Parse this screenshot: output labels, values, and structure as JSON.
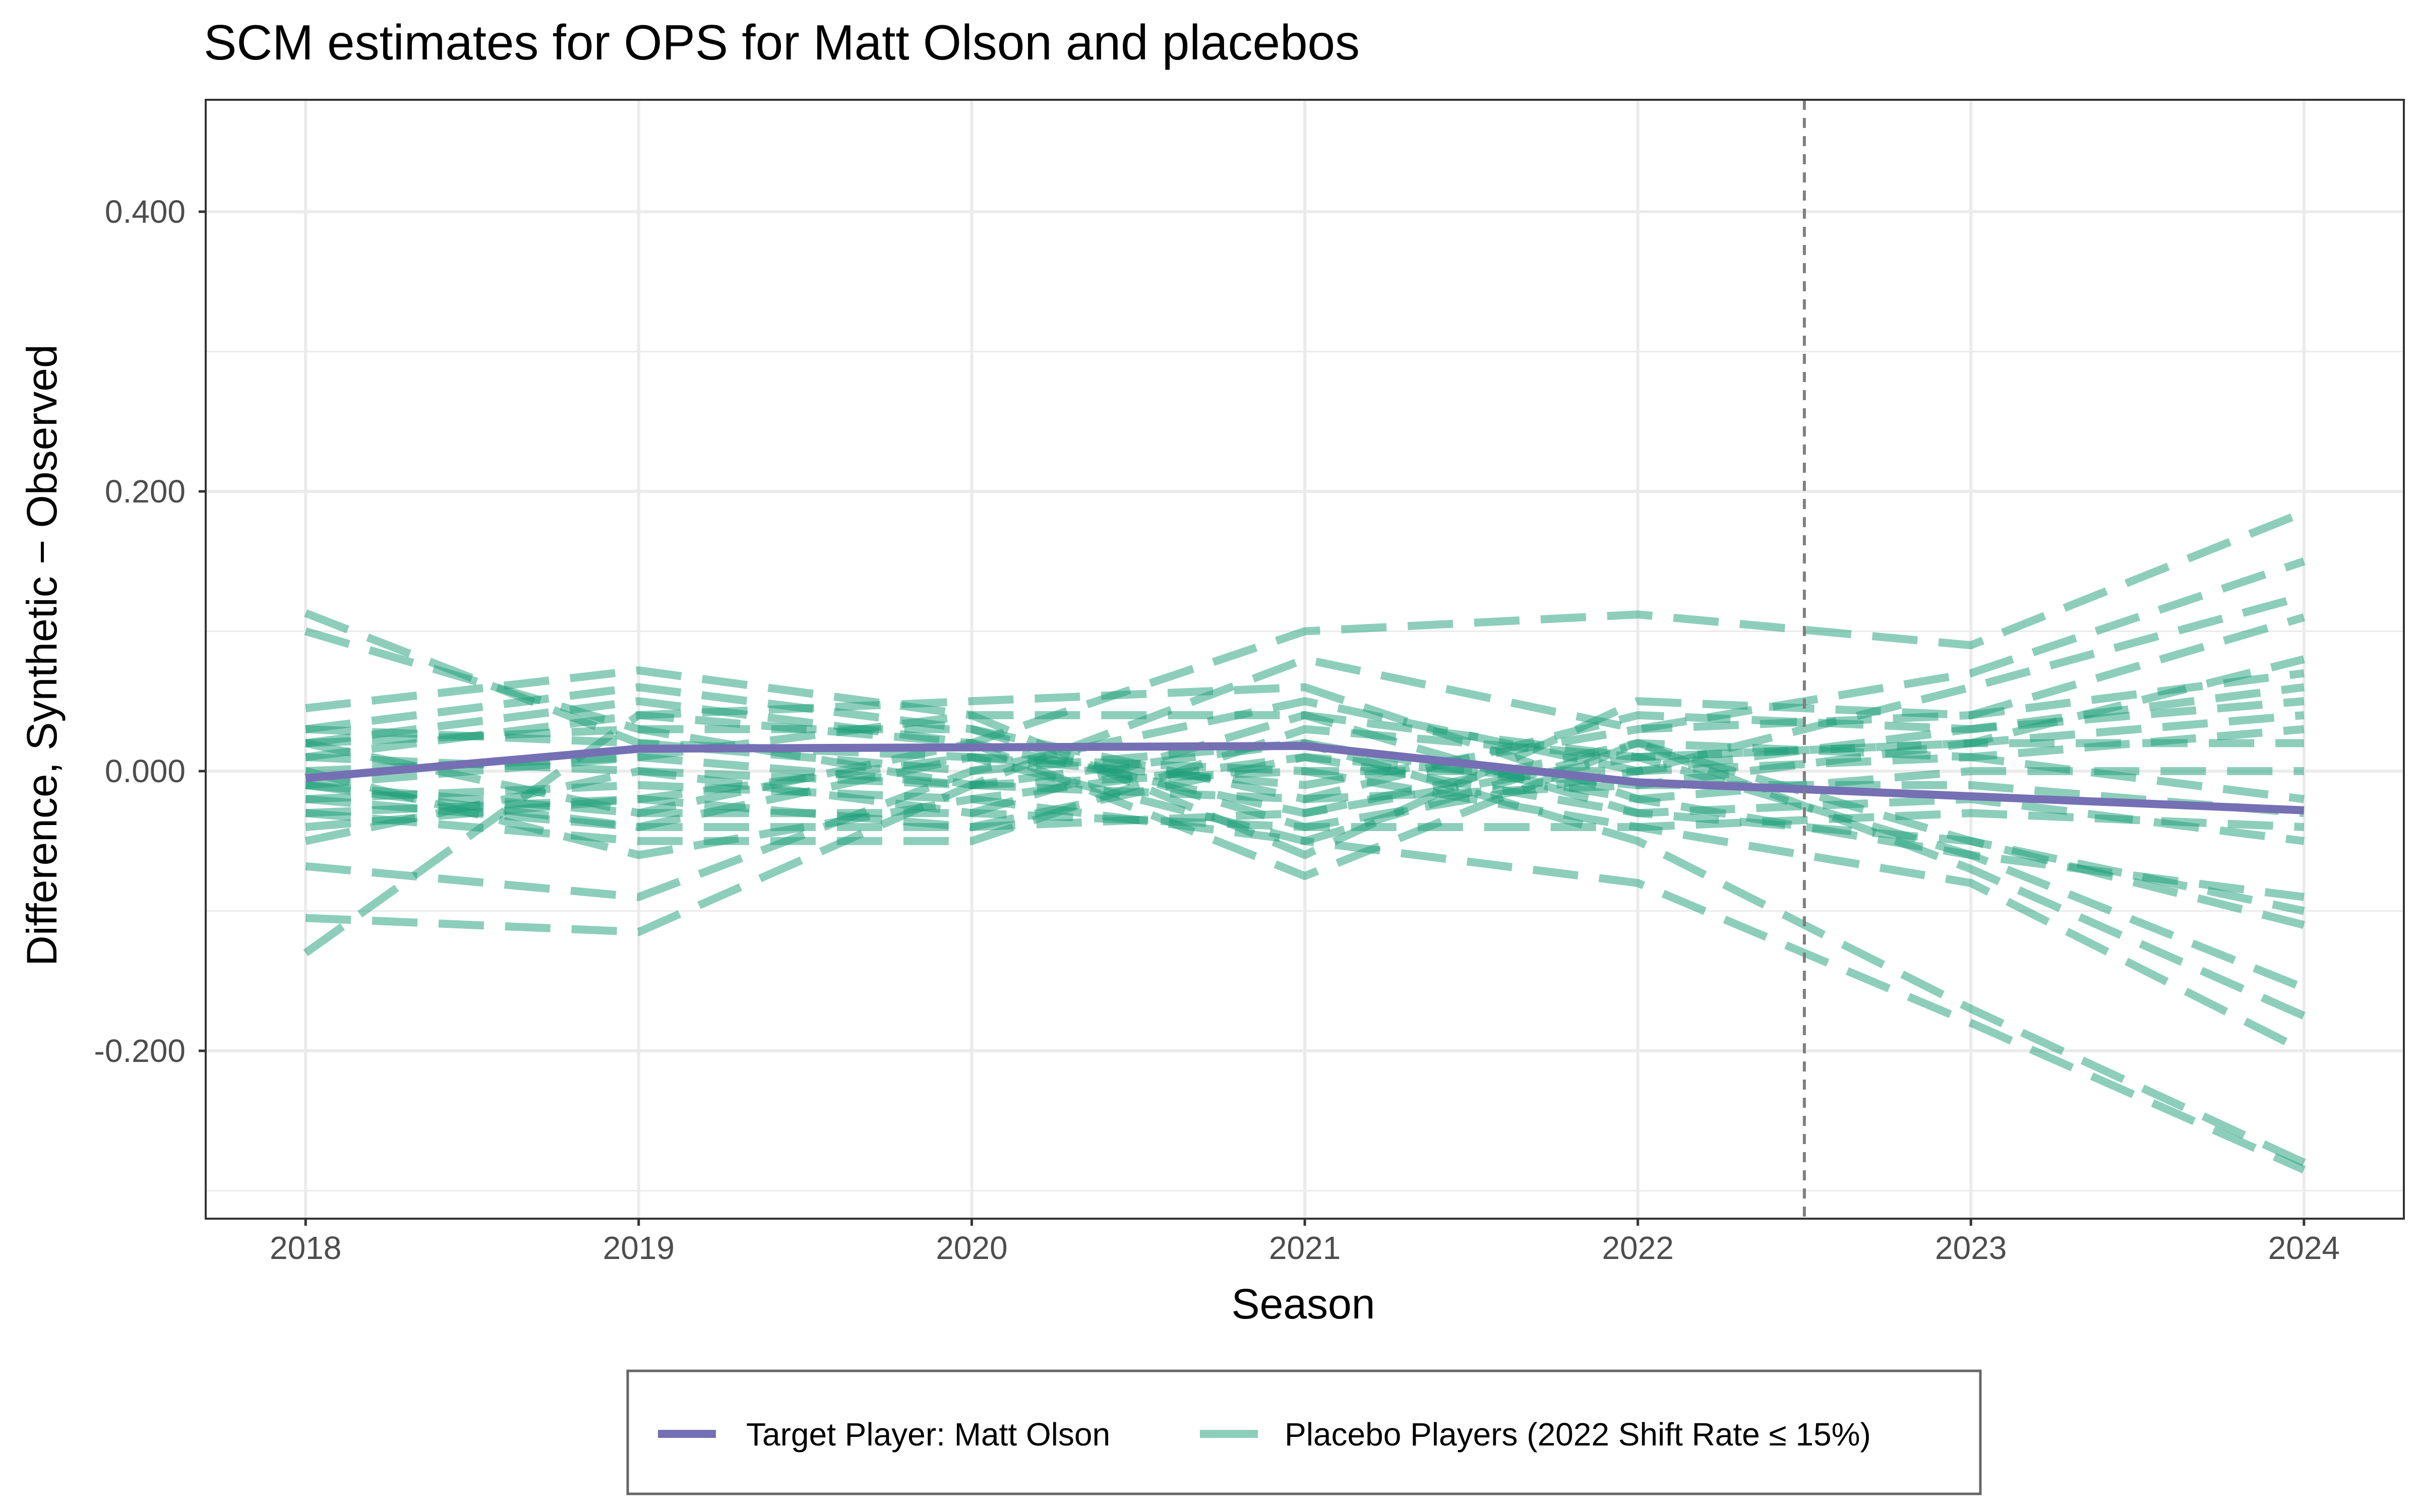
{
  "chart_data": {
    "type": "line",
    "title": "SCM estimates for OPS for Matt Olson and placebos",
    "xlabel": "Season",
    "ylabel": "Difference, Synthetic − Observed",
    "x": [
      2018,
      2019,
      2020,
      2021,
      2022,
      2023,
      2024
    ],
    "xlim": [
      2017.7,
      2024.3
    ],
    "ylim": [
      -0.32,
      0.48
    ],
    "y_ticks": [
      -0.2,
      0.0,
      0.2,
      0.4
    ],
    "y_tick_labels": [
      "-0.200",
      "0.000",
      "0.200",
      "0.400"
    ],
    "x_tick_labels": [
      "2018",
      "2019",
      "2020",
      "2021",
      "2022",
      "2023",
      "2024"
    ],
    "grid": true,
    "intervention_x": 2022.5,
    "legend_position": "bottom",
    "target_series": {
      "name": "Target Player: Matt Olson",
      "color": "#7570b3",
      "values": [
        -0.005,
        0.016,
        0.017,
        0.018,
        -0.008,
        -0.018,
        -0.028
      ]
    },
    "placebo_group": {
      "name": "Placebo Players (2022 Shift Rate ≤ 15%)",
      "color": "#1b9e77",
      "series": [
        [
          0.113,
          0.02,
          0.01,
          -0.05,
          -0.08,
          -0.18,
          -0.285
        ],
        [
          0.1,
          0.03,
          -0.01,
          0.02,
          -0.05,
          -0.17,
          -0.28
        ],
        [
          -0.13,
          0.04,
          0.02,
          0.1,
          0.112,
          0.09,
          0.185
        ],
        [
          -0.105,
          -0.115,
          -0.01,
          0.08,
          0.03,
          0.07,
          0.15
        ],
        [
          -0.068,
          -0.09,
          0.0,
          0.05,
          0.0,
          0.06,
          0.125
        ],
        [
          0.045,
          0.072,
          0.04,
          -0.06,
          0.05,
          0.04,
          0.11
        ],
        [
          0.03,
          0.06,
          0.03,
          -0.04,
          -0.04,
          -0.08,
          -0.2
        ],
        [
          0.02,
          0.05,
          0.02,
          -0.075,
          0.02,
          -0.07,
          -0.175
        ],
        [
          0.01,
          0.04,
          0.05,
          0.06,
          -0.02,
          -0.06,
          -0.155
        ],
        [
          -0.01,
          -0.03,
          -0.03,
          0.04,
          -0.03,
          -0.05,
          -0.11
        ],
        [
          -0.02,
          -0.04,
          -0.04,
          -0.03,
          0.02,
          -0.05,
          -0.1
        ],
        [
          -0.03,
          -0.05,
          -0.05,
          0.03,
          0.01,
          -0.06,
          -0.09
        ],
        [
          0.0,
          -0.06,
          -0.02,
          0.01,
          -0.01,
          0.02,
          0.08
        ],
        [
          -0.04,
          -0.02,
          0.01,
          -0.01,
          0.03,
          0.04,
          0.07
        ],
        [
          0.02,
          0.03,
          0.03,
          -0.02,
          0.04,
          0.03,
          0.06
        ],
        [
          -0.05,
          0.0,
          -0.03,
          -0.04,
          0.0,
          0.03,
          0.05
        ],
        [
          0.0,
          0.01,
          0.04,
          0.04,
          0.01,
          0.02,
          0.04
        ],
        [
          -0.02,
          -0.01,
          -0.02,
          -0.05,
          0.02,
          0.01,
          0.03
        ],
        [
          0.03,
          0.02,
          0.0,
          0.02,
          -0.02,
          0.0,
          0.0
        ],
        [
          -0.01,
          -0.04,
          0.01,
          0.0,
          0.0,
          0.01,
          -0.02
        ],
        [
          0.01,
          0.0,
          -0.01,
          -0.02,
          -0.01,
          -0.01,
          -0.03
        ],
        [
          -0.03,
          -0.02,
          -0.04,
          0.01,
          -0.03,
          -0.02,
          -0.05
        ],
        [
          0.02,
          -0.03,
          0.02,
          -0.03,
          0.01,
          0.02,
          0.02
        ],
        [
          -0.01,
          0.01,
          -0.01,
          0.0,
          -0.04,
          -0.03,
          -0.04
        ]
      ]
    }
  }
}
